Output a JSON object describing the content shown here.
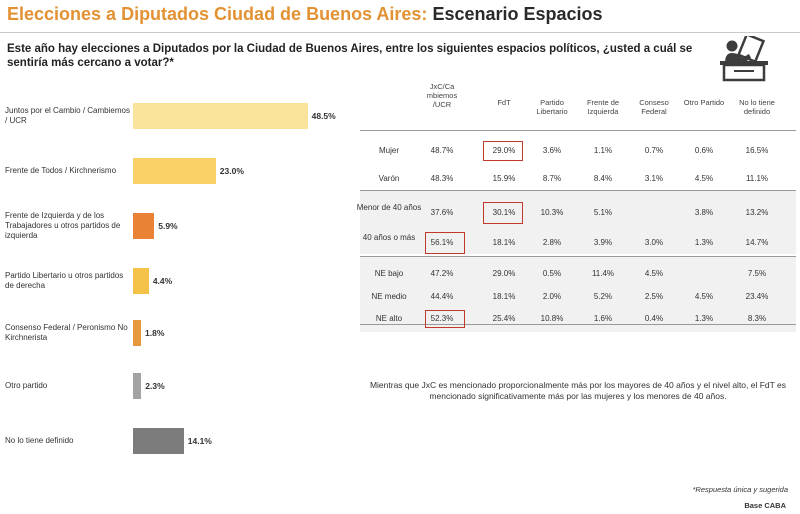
{
  "header": {
    "title_part1": "Elecciones a Diputados Ciudad de Buenos Aires:",
    "title_part2": "Escenario Espacios",
    "question": "Este año hay elecciones a Diputados por la Ciudad de Buenos Aires, entre los siguientes espacios políticos, ¿usted a cuál se sentiría más cercano a votar?*",
    "icon": "ballot-box-vote-icon"
  },
  "chart_data": {
    "type": "bar",
    "orientation": "horizontal",
    "title": "",
    "unit": "%",
    "xlim": [
      0,
      50
    ],
    "categories": [
      "Juntos por el Cambio / Cambiemos / UCR",
      "Frente de Todos / Kirchnerismo",
      "Frente de Izquierda y de los Trabajadores u otros partidos de izquierda",
      "Partido Libertario u otros partidos de derecha",
      "Consenso Federal / Peronismo No Kirchnerista",
      "Otro partido",
      "No lo tiene definido"
    ],
    "values": [
      48.5,
      23.0,
      5.9,
      4.4,
      1.8,
      2.3,
      14.1
    ],
    "value_labels": [
      "48.5%",
      "23.0%",
      "5.9%",
      "4.4%",
      "1.8%",
      "2.3%",
      "14.1%"
    ],
    "colors": [
      "#fae39b",
      "#f9d167",
      "#ea8236",
      "#f5c249",
      "#e7973d",
      "#a3a3a3",
      "#7c7c7c"
    ]
  },
  "table": {
    "columns": [
      "JxC/Ca mbiemos /UCR",
      "FdT",
      "Partido Libertario",
      "Frente de Izquierda",
      "Conseso Federal",
      "Otro Partido",
      "No lo tiene definido"
    ],
    "rows": [
      {
        "label": "Mujer",
        "values": [
          "48.7%",
          "29.0%",
          "3.6%",
          "1.1%",
          "0.7%",
          "0.6%",
          "16.5%"
        ]
      },
      {
        "label": "Varón",
        "values": [
          "48.3%",
          "15.9%",
          "8.7%",
          "8.4%",
          "3.1%",
          "4.5%",
          "11.1%"
        ]
      },
      {
        "label": "Menor de 40 años",
        "values": [
          "37.6%",
          "30.1%",
          "10.3%",
          "5.1%",
          "",
          "3.8%",
          "13.2%"
        ]
      },
      {
        "label": "40 años o más",
        "values": [
          "56.1%",
          "18.1%",
          "2.8%",
          "3.9%",
          "3.0%",
          "1.3%",
          "14.7%"
        ]
      },
      {
        "label": "NE bajo",
        "values": [
          "47.2%",
          "29.0%",
          "0.5%",
          "11.4%",
          "4.5%",
          "",
          "7.5%"
        ]
      },
      {
        "label": "NE medio",
        "values": [
          "44.4%",
          "18.1%",
          "2.0%",
          "5.2%",
          "2.5%",
          "4.5%",
          "23.4%"
        ]
      },
      {
        "label": "NE alto",
        "values": [
          "52.3%",
          "25.4%",
          "10.8%",
          "1.6%",
          "0.4%",
          "1.3%",
          "8.3%"
        ]
      }
    ]
  },
  "note": "Mientras que JxC es mencionado proporcionalmente más por los mayores de 40 años y el nivel alto, el FdT es mencionado significativamente más por las mujeres y los menores de 40 años.",
  "footer": {
    "footnote": "*Respuesta única y sugerida",
    "base": "Base CABA"
  }
}
